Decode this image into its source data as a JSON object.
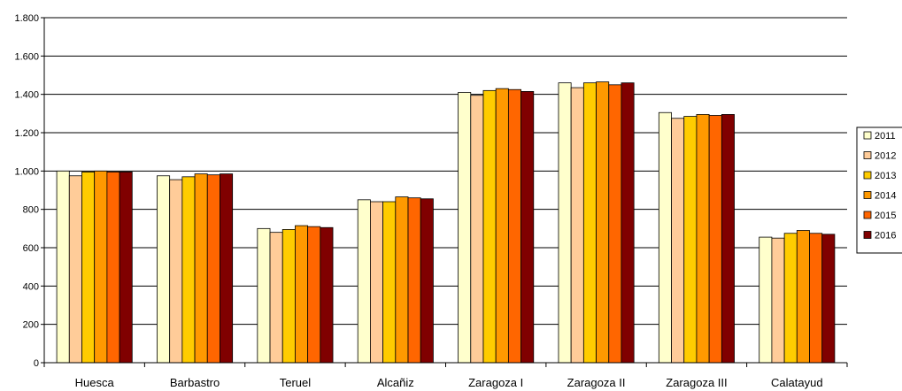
{
  "chart_data": {
    "type": "bar",
    "title": "",
    "xlabel": "",
    "ylabel": "",
    "ylim": [
      0,
      1800
    ],
    "yticks": [
      0,
      200,
      400,
      600,
      800,
      1000,
      1200,
      1400,
      1600,
      1800
    ],
    "ytick_labels": [
      "0",
      "200",
      "400",
      "600",
      "800",
      "1.000",
      "1.200",
      "1.400",
      "1.600",
      "1.800"
    ],
    "grid": "horizontal",
    "legend_position": "right",
    "categories": [
      "Huesca",
      "Barbastro",
      "Teruel",
      "Alcañiz",
      "Zaragoza I",
      "Zaragoza II",
      "Zaragoza III",
      "Calatayud"
    ],
    "series": [
      {
        "name": "2011",
        "color": "#FFFFCC",
        "values": [
          1000,
          975,
          700,
          850,
          1410,
          1460,
          1305,
          655
        ]
      },
      {
        "name": "2012",
        "color": "#FFCC99",
        "values": [
          975,
          955,
          680,
          840,
          1395,
          1435,
          1275,
          650
        ]
      },
      {
        "name": "2013",
        "color": "#FFCC00",
        "values": [
          995,
          970,
          695,
          840,
          1420,
          1460,
          1285,
          675
        ]
      },
      {
        "name": "2014",
        "color": "#FF9900",
        "values": [
          1000,
          985,
          715,
          865,
          1430,
          1465,
          1295,
          690
        ]
      },
      {
        "name": "2015",
        "color": "#FF6600",
        "values": [
          995,
          980,
          710,
          860,
          1425,
          1450,
          1290,
          675
        ]
      },
      {
        "name": "2016",
        "color": "#800000",
        "values": [
          995,
          985,
          705,
          855,
          1415,
          1460,
          1295,
          670
        ]
      }
    ]
  }
}
